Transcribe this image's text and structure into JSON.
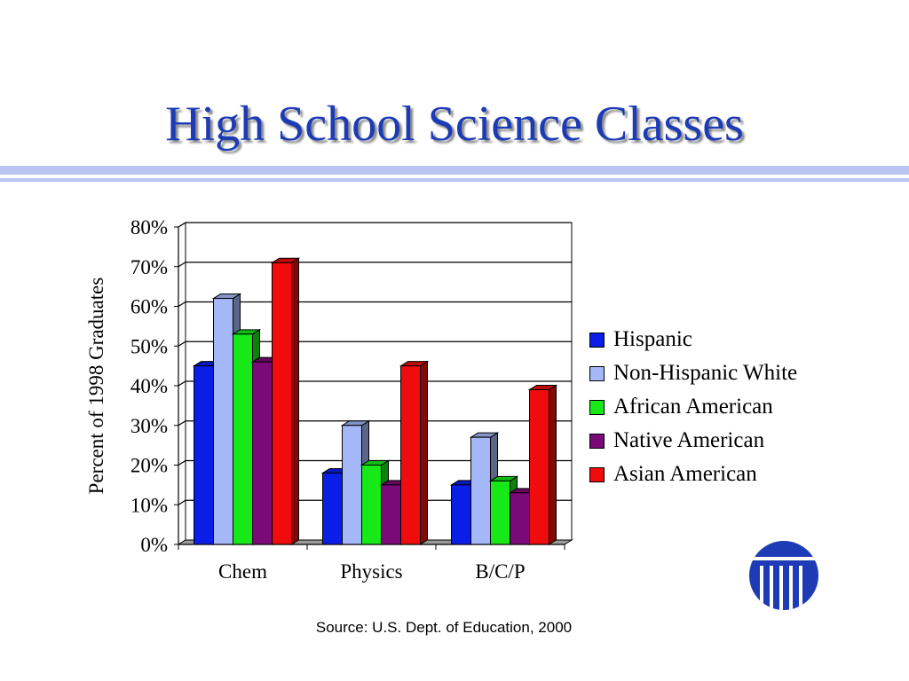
{
  "slide": {
    "title": "High School Science Classes",
    "source": "Source:  U.S. Dept. of Education, 2000",
    "accent_color": "#1d3bb5",
    "rule_color": "#b7c5f0",
    "logo_icon": "university-logo-icon"
  },
  "chart_data": {
    "type": "bar",
    "title": "",
    "xlabel": "",
    "ylabel": "Percent of 1998 Graduates",
    "categories": [
      "Chem",
      "Physics",
      "B/C/P"
    ],
    "ylim": [
      0,
      80
    ],
    "yticks": [
      "0%",
      "10%",
      "20%",
      "30%",
      "40%",
      "50%",
      "60%",
      "70%",
      "80%"
    ],
    "grid": true,
    "legend_position": "right",
    "style": "3d-clustered",
    "series": [
      {
        "name": "Hispanic",
        "color": "#0a1ee8",
        "values": [
          45,
          18,
          15
        ]
      },
      {
        "name": "Non-Hispanic White",
        "color": "#a4b8f7",
        "values": [
          62,
          30,
          27
        ]
      },
      {
        "name": "African American",
        "color": "#17e817",
        "values": [
          53,
          20,
          16
        ]
      },
      {
        "name": "Native American",
        "color": "#7a0a77",
        "values": [
          46,
          15,
          13
        ]
      },
      {
        "name": "Asian American",
        "color": "#f00c0c",
        "values": [
          71,
          45,
          39
        ]
      }
    ]
  }
}
